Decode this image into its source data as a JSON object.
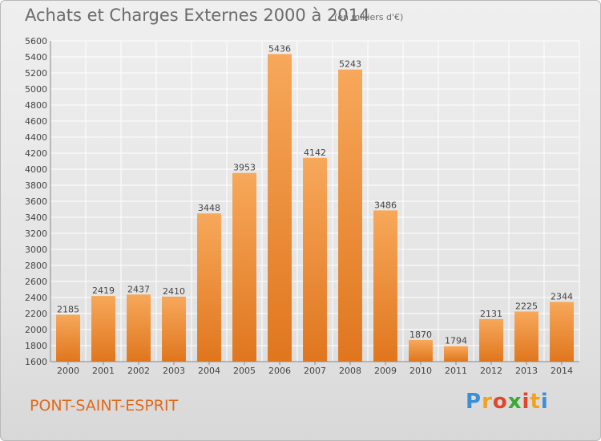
{
  "title": "Achats et Charges Externes 2000 à 2014",
  "subtitle": "(en milliers d'€)",
  "city": "PONT-SAINT-ESPRIT",
  "logo": {
    "letters": [
      "P",
      "r",
      "o",
      "x",
      "i",
      "t",
      "i"
    ],
    "colors": [
      "#3a8fd6",
      "#f2a21b",
      "#e2452c",
      "#3aa935",
      "#e2452c",
      "#f2a21b",
      "#3a8fd6"
    ]
  },
  "colors": {
    "bar_light": "#f7a85a",
    "bar_dark": "#e0761e",
    "grid": "#ffffff",
    "text": "#444444",
    "city": "#e06a1b"
  },
  "chart_data": {
    "type": "bar",
    "categories": [
      "2000",
      "2001",
      "2002",
      "2003",
      "2004",
      "2005",
      "2006",
      "2007",
      "2008",
      "2009",
      "2010",
      "2011",
      "2012",
      "2013",
      "2014"
    ],
    "values": [
      2185,
      2419,
      2437,
      2410,
      3448,
      3953,
      5436,
      4142,
      5243,
      3486,
      1870,
      1794,
      2131,
      2225,
      2344
    ],
    "ylim": [
      1600,
      5600
    ],
    "yticks": [
      1600,
      1800,
      2000,
      2200,
      2400,
      2600,
      2800,
      3000,
      3200,
      3400,
      3600,
      3800,
      4000,
      4200,
      4400,
      4600,
      4800,
      5000,
      5200,
      5400,
      5600
    ],
    "grid": true,
    "data_labels": true
  }
}
